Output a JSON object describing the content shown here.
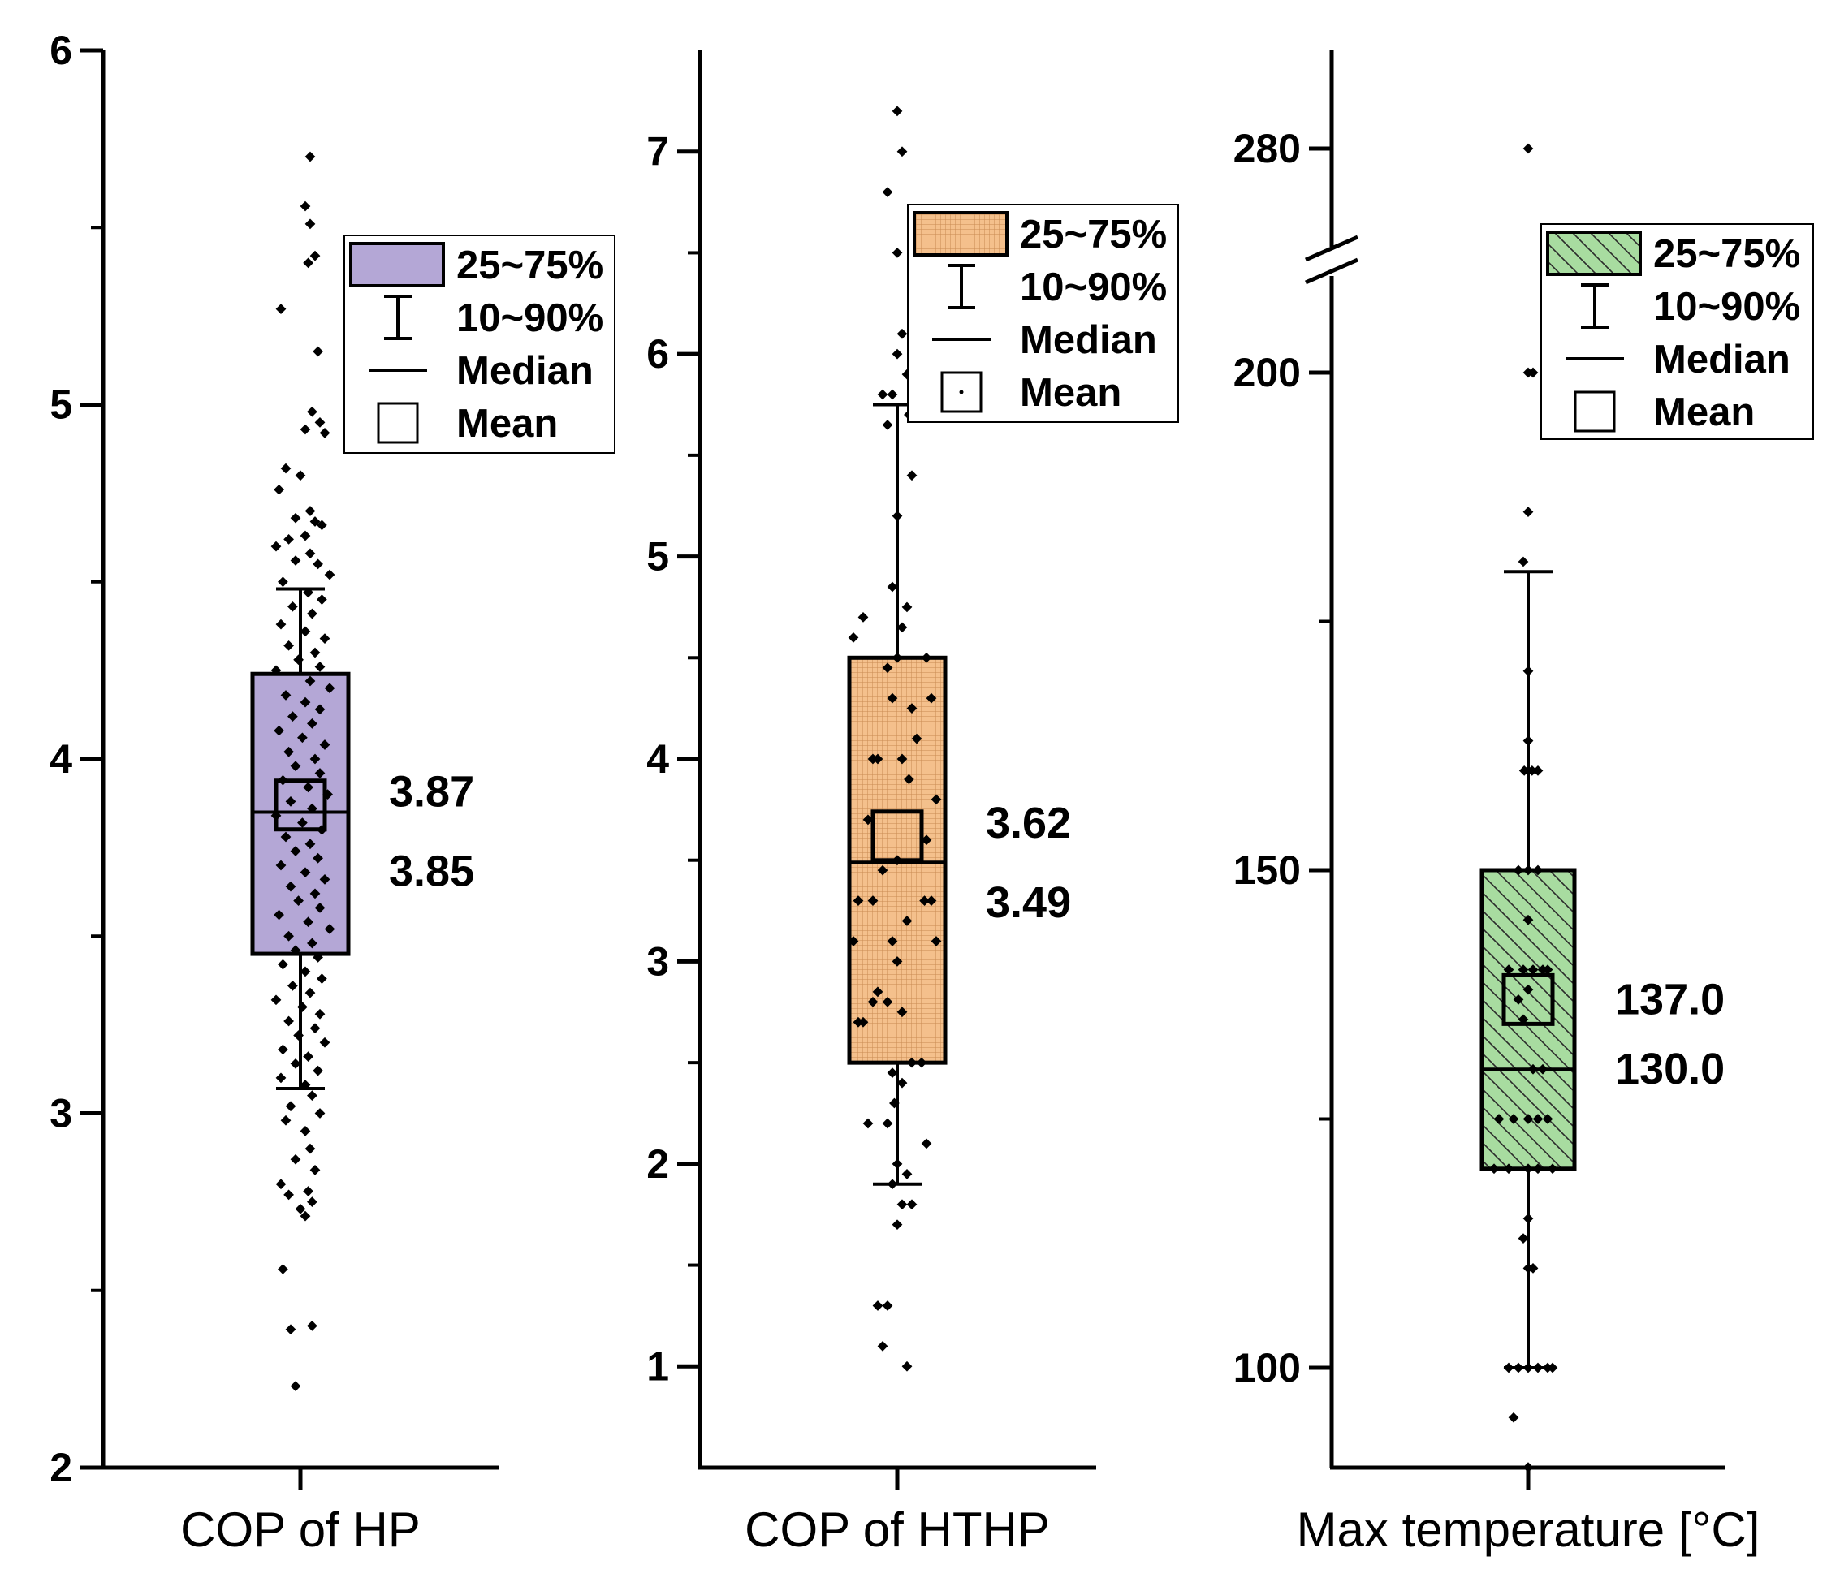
{
  "chart_data": [
    {
      "type": "box",
      "xlabel": "COP of HP",
      "ylim": [
        2,
        6
      ],
      "yticks": [
        2,
        3,
        4,
        5,
        6
      ],
      "minor_yticks": [
        2.5,
        3.5,
        4.5,
        5.5
      ],
      "box": {
        "q1": 3.45,
        "median": 3.85,
        "q3": 4.24,
        "mean": 3.87,
        "p10": 3.07,
        "p90": 4.48
      },
      "fill": "#b4a7d6",
      "pattern": "solid",
      "mean_label": "3.87",
      "median_label": "3.85",
      "legend": {
        "box": "25~75%",
        "whisker": "10~90%",
        "median": "Median",
        "mean": "Mean"
      },
      "points": [
        [
          0.1,
          5.7
        ],
        [
          0.05,
          5.56
        ],
        [
          0.1,
          5.51
        ],
        [
          0.15,
          5.42
        ],
        [
          0.08,
          5.4
        ],
        [
          -0.2,
          5.27
        ],
        [
          0.18,
          5.15
        ],
        [
          0.12,
          4.98
        ],
        [
          0.2,
          4.95
        ],
        [
          0.05,
          4.93
        ],
        [
          0.25,
          4.92
        ],
        [
          -0.15,
          4.82
        ],
        [
          0.0,
          4.8
        ],
        [
          -0.22,
          4.76
        ],
        [
          0.1,
          4.7
        ],
        [
          -0.05,
          4.68
        ],
        [
          0.15,
          4.67
        ],
        [
          0.22,
          4.66
        ],
        [
          0.05,
          4.63
        ],
        [
          -0.12,
          4.62
        ],
        [
          -0.25,
          4.6
        ],
        [
          0.1,
          4.58
        ],
        [
          -0.05,
          4.56
        ],
        [
          0.18,
          4.55
        ],
        [
          0.3,
          4.52
        ],
        [
          -0.18,
          4.5
        ],
        [
          0.08,
          4.47
        ],
        [
          0.22,
          4.45
        ],
        [
          -0.08,
          4.43
        ],
        [
          0.12,
          4.41
        ],
        [
          -0.2,
          4.38
        ],
        [
          0.05,
          4.36
        ],
        [
          0.25,
          4.34
        ],
        [
          -0.12,
          4.32
        ],
        [
          0.15,
          4.3
        ],
        [
          -0.02,
          4.28
        ],
        [
          0.2,
          4.26
        ],
        [
          -0.25,
          4.25
        ],
        [
          0.1,
          4.22
        ],
        [
          0.3,
          4.2
        ],
        [
          -0.15,
          4.18
        ],
        [
          0.05,
          4.16
        ],
        [
          0.2,
          4.14
        ],
        [
          -0.08,
          4.12
        ],
        [
          0.12,
          4.1
        ],
        [
          -0.22,
          4.08
        ],
        [
          0.02,
          4.06
        ],
        [
          0.25,
          4.04
        ],
        [
          -0.12,
          4.02
        ],
        [
          0.15,
          4.0
        ],
        [
          -0.05,
          3.98
        ],
        [
          0.2,
          3.96
        ],
        [
          -0.18,
          3.94
        ],
        [
          0.08,
          3.92
        ],
        [
          0.28,
          3.9
        ],
        [
          -0.1,
          3.88
        ],
        [
          0.12,
          3.86
        ],
        [
          -0.25,
          3.84
        ],
        [
          0.02,
          3.82
        ],
        [
          0.22,
          3.8
        ],
        [
          -0.15,
          3.78
        ],
        [
          0.1,
          3.76
        ],
        [
          -0.05,
          3.74
        ],
        [
          0.18,
          3.72
        ],
        [
          -0.2,
          3.7
        ],
        [
          0.05,
          3.68
        ],
        [
          0.25,
          3.66
        ],
        [
          -0.1,
          3.64
        ],
        [
          0.15,
          3.62
        ],
        [
          -0.02,
          3.6
        ],
        [
          0.2,
          3.58
        ],
        [
          -0.22,
          3.56
        ],
        [
          0.08,
          3.54
        ],
        [
          0.3,
          3.52
        ],
        [
          -0.12,
          3.5
        ],
        [
          0.12,
          3.48
        ],
        [
          -0.05,
          3.46
        ],
        [
          0.18,
          3.44
        ],
        [
          -0.18,
          3.42
        ],
        [
          0.05,
          3.4
        ],
        [
          0.22,
          3.38
        ],
        [
          -0.08,
          3.36
        ],
        [
          0.1,
          3.34
        ],
        [
          -0.25,
          3.32
        ],
        [
          0.02,
          3.3
        ],
        [
          0.2,
          3.28
        ],
        [
          -0.12,
          3.26
        ],
        [
          0.15,
          3.24
        ],
        [
          -0.02,
          3.22
        ],
        [
          0.25,
          3.2
        ],
        [
          -0.18,
          3.18
        ],
        [
          0.08,
          3.16
        ],
        [
          -0.05,
          3.14
        ],
        [
          0.18,
          3.12
        ],
        [
          -0.2,
          3.1
        ],
        [
          0.05,
          3.08
        ],
        [
          0.12,
          3.05
        ],
        [
          -0.1,
          3.02
        ],
        [
          0.2,
          3.0
        ],
        [
          -0.15,
          2.98
        ],
        [
          0.05,
          2.95
        ],
        [
          0.1,
          2.9
        ],
        [
          -0.05,
          2.87
        ],
        [
          0.15,
          2.84
        ],
        [
          -0.2,
          2.8
        ],
        [
          0.08,
          2.78
        ],
        [
          -0.12,
          2.77
        ],
        [
          0.12,
          2.75
        ],
        [
          0.0,
          2.73
        ],
        [
          0.05,
          2.71
        ],
        [
          -0.18,
          2.56
        ],
        [
          -0.1,
          2.39
        ],
        [
          0.12,
          2.4
        ],
        [
          -0.05,
          2.23
        ]
      ]
    },
    {
      "type": "box",
      "xlabel": "COP of HTHP",
      "ylim": [
        0.5,
        7.5
      ],
      "yticks": [
        1,
        2,
        3,
        4,
        5,
        6,
        7
      ],
      "minor_yticks": [
        1.5,
        2.5,
        3.5,
        4.5,
        5.5,
        6.5
      ],
      "box": {
        "q1": 2.5,
        "median": 3.49,
        "q3": 4.5,
        "mean": 3.62,
        "p10": 1.9,
        "p90": 5.75
      },
      "fill": "#f4c08c",
      "pattern": "grid",
      "mean_label": "3.62",
      "median_label": "3.49",
      "legend": {
        "box": "25~75%",
        "whisker": "10~90%",
        "median": "Median",
        "mean": "Mean"
      },
      "points": [
        [
          0.0,
          7.2
        ],
        [
          0.05,
          7.0
        ],
        [
          -0.1,
          6.8
        ],
        [
          0.0,
          6.5
        ],
        [
          0.05,
          6.1
        ],
        [
          0.0,
          6.0
        ],
        [
          0.1,
          5.9
        ],
        [
          -0.15,
          5.8
        ],
        [
          -0.05,
          5.8
        ],
        [
          0.12,
          5.7
        ],
        [
          -0.1,
          5.65
        ],
        [
          0.15,
          5.4
        ],
        [
          0.0,
          5.2
        ],
        [
          -0.05,
          4.85
        ],
        [
          0.1,
          4.75
        ],
        [
          -0.35,
          4.7
        ],
        [
          0.05,
          4.65
        ],
        [
          -0.45,
          4.6
        ],
        [
          0.0,
          4.5
        ],
        [
          0.3,
          4.5
        ],
        [
          -0.1,
          4.45
        ],
        [
          0.35,
          4.3
        ],
        [
          -0.05,
          4.3
        ],
        [
          0.15,
          4.25
        ],
        [
          0.2,
          4.1
        ],
        [
          -0.2,
          4.0
        ],
        [
          0.05,
          4.0
        ],
        [
          -0.25,
          4.0
        ],
        [
          0.12,
          3.9
        ],
        [
          0.4,
          3.8
        ],
        [
          -0.3,
          3.7
        ],
        [
          0.3,
          3.6
        ],
        [
          0.0,
          3.5
        ],
        [
          -0.15,
          3.45
        ],
        [
          0.35,
          3.3
        ],
        [
          -0.4,
          3.3
        ],
        [
          -0.25,
          3.3
        ],
        [
          0.28,
          3.3
        ],
        [
          0.1,
          3.2
        ],
        [
          -0.05,
          3.1
        ],
        [
          0.4,
          3.1
        ],
        [
          -0.45,
          3.1
        ],
        [
          0.0,
          3.0
        ],
        [
          -0.2,
          2.85
        ],
        [
          -0.25,
          2.8
        ],
        [
          -0.1,
          2.8
        ],
        [
          0.05,
          2.75
        ],
        [
          -0.35,
          2.7
        ],
        [
          -0.4,
          2.7
        ],
        [
          0.15,
          2.5
        ],
        [
          0.25,
          2.5
        ],
        [
          -0.05,
          2.45
        ],
        [
          0.05,
          2.4
        ],
        [
          -0.03,
          2.3
        ],
        [
          -0.1,
          2.2
        ],
        [
          0.3,
          2.1
        ],
        [
          -0.3,
          2.2
        ],
        [
          0.0,
          2.0
        ],
        [
          0.1,
          1.95
        ],
        [
          -0.05,
          1.9
        ],
        [
          0.15,
          1.8
        ],
        [
          0.05,
          1.8
        ],
        [
          0.0,
          1.7
        ],
        [
          -0.2,
          1.3
        ],
        [
          -0.1,
          1.3
        ],
        [
          -0.15,
          1.1
        ],
        [
          0.1,
          1.0
        ]
      ]
    },
    {
      "type": "box",
      "xlabel": "Max temperature [°C]",
      "ylim": [
        90,
        300
      ],
      "axis_break": [
        205,
        240
      ],
      "yticks": [
        100,
        150,
        200,
        280
      ],
      "minor_yticks": [
        125,
        175
      ],
      "box": {
        "q1": 120,
        "median": 130,
        "q3": 150,
        "mean": 137.0,
        "p10": 100,
        "p90": 180
      },
      "fill": "#a8dca0",
      "pattern": "hatch",
      "mean_label": "137.0",
      "median_label": "130.0",
      "legend": {
        "box": "25~75%",
        "whisker": "10~90%",
        "median": "Median",
        "mean": "Mean"
      },
      "points": [
        [
          0.0,
          280
        ],
        [
          0.0,
          200
        ],
        [
          0.05,
          200
        ],
        [
          0.0,
          186
        ],
        [
          -0.05,
          181
        ],
        [
          0.0,
          170
        ],
        [
          0.0,
          163
        ],
        [
          -0.04,
          160
        ],
        [
          0.0,
          160
        ],
        [
          0.04,
          160
        ],
        [
          0.1,
          160
        ],
        [
          -0.1,
          150
        ],
        [
          0.0,
          150
        ],
        [
          0.1,
          150
        ],
        [
          0.0,
          145
        ],
        [
          -0.2,
          140
        ],
        [
          -0.05,
          140
        ],
        [
          0.05,
          140
        ],
        [
          0.15,
          140
        ],
        [
          0.2,
          140
        ],
        [
          0.0,
          138
        ],
        [
          -0.1,
          137
        ],
        [
          -0.05,
          135
        ],
        [
          0.05,
          130
        ],
        [
          0.15,
          130
        ],
        [
          -0.15,
          125
        ],
        [
          -0.3,
          125
        ],
        [
          0.0,
          125
        ],
        [
          0.2,
          125
        ],
        [
          0.1,
          125
        ],
        [
          -0.2,
          120
        ],
        [
          -0.35,
          120
        ],
        [
          0.0,
          120
        ],
        [
          0.25,
          120
        ],
        [
          0.1,
          120
        ],
        [
          0.0,
          115
        ],
        [
          -0.05,
          113
        ],
        [
          0.0,
          110
        ],
        [
          0.05,
          110
        ],
        [
          -0.1,
          100
        ],
        [
          0.0,
          100
        ],
        [
          0.1,
          100
        ],
        [
          0.2,
          100
        ],
        [
          -0.2,
          100
        ],
        [
          0.25,
          100
        ],
        [
          -0.15,
          95
        ],
        [
          0.0,
          90
        ]
      ]
    }
  ]
}
